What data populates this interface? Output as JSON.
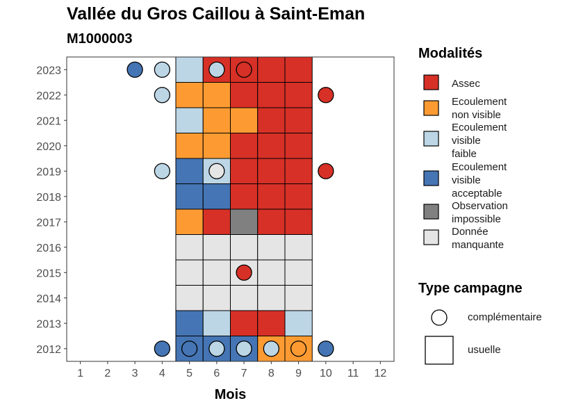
{
  "chart_data": {
    "type": "heatmap",
    "title": "Vallée du Gros Caillou à Saint-Eman",
    "subtitle": "M1000003",
    "xlabel": "Mois",
    "ylabel": "",
    "x_ticks": [
      1,
      2,
      3,
      4,
      5,
      6,
      7,
      8,
      9,
      10,
      11,
      12
    ],
    "y_ticks": [
      2012,
      2013,
      2014,
      2015,
      2016,
      2017,
      2018,
      2019,
      2020,
      2021,
      2022,
      2023
    ],
    "xlim": [
      0.5,
      12.5
    ],
    "ylim": [
      2011.5,
      2023.5
    ],
    "grid": false,
    "legend_position": "right",
    "legend_modalites": {
      "title": "Modalités",
      "items": [
        {
          "key": "assec",
          "label": "Assec",
          "color": "#d73027"
        },
        {
          "key": "ecoulement_non_visible",
          "label": "Ecoulement\nnon visible",
          "color": "#fd9b32"
        },
        {
          "key": "ecoulement_visible_faible",
          "label": "Ecoulement\nvisible\nfaible",
          "color": "#bcd6e6"
        },
        {
          "key": "ecoulement_visible_acceptable",
          "label": "Ecoulement\nvisible\nacceptable",
          "color": "#4575b4"
        },
        {
          "key": "observation_impossible",
          "label": "Observation\nimpossible",
          "color": "#808080"
        },
        {
          "key": "donnee_manquante",
          "label": "Donnée\nmanquante",
          "color": "#e5e5e5"
        }
      ]
    },
    "legend_type": {
      "title": "Type campagne",
      "items": [
        {
          "key": "complementaire",
          "label": "complémentaire",
          "shape": "circle"
        },
        {
          "key": "usuelle",
          "label": "usuelle",
          "shape": "square"
        }
      ]
    },
    "usuelle": [
      {
        "year": 2023,
        "month": 5,
        "modalite": "ecoulement_visible_faible"
      },
      {
        "year": 2023,
        "month": 6,
        "modalite": "assec"
      },
      {
        "year": 2023,
        "month": 7,
        "modalite": "assec"
      },
      {
        "year": 2023,
        "month": 8,
        "modalite": "assec"
      },
      {
        "year": 2023,
        "month": 9,
        "modalite": "assec"
      },
      {
        "year": 2022,
        "month": 5,
        "modalite": "ecoulement_non_visible"
      },
      {
        "year": 2022,
        "month": 6,
        "modalite": "ecoulement_non_visible"
      },
      {
        "year": 2022,
        "month": 7,
        "modalite": "assec"
      },
      {
        "year": 2022,
        "month": 8,
        "modalite": "assec"
      },
      {
        "year": 2022,
        "month": 9,
        "modalite": "assec"
      },
      {
        "year": 2021,
        "month": 5,
        "modalite": "ecoulement_visible_faible"
      },
      {
        "year": 2021,
        "month": 6,
        "modalite": "ecoulement_non_visible"
      },
      {
        "year": 2021,
        "month": 7,
        "modalite": "ecoulement_non_visible"
      },
      {
        "year": 2021,
        "month": 8,
        "modalite": "assec"
      },
      {
        "year": 2021,
        "month": 9,
        "modalite": "assec"
      },
      {
        "year": 2020,
        "month": 5,
        "modalite": "ecoulement_non_visible"
      },
      {
        "year": 2020,
        "month": 6,
        "modalite": "ecoulement_non_visible"
      },
      {
        "year": 2020,
        "month": 7,
        "modalite": "assec"
      },
      {
        "year": 2020,
        "month": 8,
        "modalite": "assec"
      },
      {
        "year": 2020,
        "month": 9,
        "modalite": "assec"
      },
      {
        "year": 2019,
        "month": 5,
        "modalite": "ecoulement_visible_acceptable"
      },
      {
        "year": 2019,
        "month": 6,
        "modalite": "ecoulement_visible_faible"
      },
      {
        "year": 2019,
        "month": 7,
        "modalite": "assec"
      },
      {
        "year": 2019,
        "month": 8,
        "modalite": "assec"
      },
      {
        "year": 2019,
        "month": 9,
        "modalite": "assec"
      },
      {
        "year": 2018,
        "month": 5,
        "modalite": "ecoulement_visible_acceptable"
      },
      {
        "year": 2018,
        "month": 6,
        "modalite": "ecoulement_visible_acceptable"
      },
      {
        "year": 2018,
        "month": 7,
        "modalite": "assec"
      },
      {
        "year": 2018,
        "month": 8,
        "modalite": "assec"
      },
      {
        "year": 2018,
        "month": 9,
        "modalite": "assec"
      },
      {
        "year": 2017,
        "month": 5,
        "modalite": "ecoulement_non_visible"
      },
      {
        "year": 2017,
        "month": 6,
        "modalite": "assec"
      },
      {
        "year": 2017,
        "month": 7,
        "modalite": "observation_impossible"
      },
      {
        "year": 2017,
        "month": 8,
        "modalite": "assec"
      },
      {
        "year": 2017,
        "month": 9,
        "modalite": "assec"
      },
      {
        "year": 2016,
        "month": 5,
        "modalite": "donnee_manquante"
      },
      {
        "year": 2016,
        "month": 6,
        "modalite": "donnee_manquante"
      },
      {
        "year": 2016,
        "month": 7,
        "modalite": "donnee_manquante"
      },
      {
        "year": 2016,
        "month": 8,
        "modalite": "donnee_manquante"
      },
      {
        "year": 2016,
        "month": 9,
        "modalite": "donnee_manquante"
      },
      {
        "year": 2015,
        "month": 5,
        "modalite": "donnee_manquante"
      },
      {
        "year": 2015,
        "month": 6,
        "modalite": "donnee_manquante"
      },
      {
        "year": 2015,
        "month": 7,
        "modalite": "donnee_manquante"
      },
      {
        "year": 2015,
        "month": 8,
        "modalite": "donnee_manquante"
      },
      {
        "year": 2015,
        "month": 9,
        "modalite": "donnee_manquante"
      },
      {
        "year": 2014,
        "month": 5,
        "modalite": "donnee_manquante"
      },
      {
        "year": 2014,
        "month": 6,
        "modalite": "donnee_manquante"
      },
      {
        "year": 2014,
        "month": 7,
        "modalite": "donnee_manquante"
      },
      {
        "year": 2014,
        "month": 8,
        "modalite": "donnee_manquante"
      },
      {
        "year": 2014,
        "month": 9,
        "modalite": "donnee_manquante"
      },
      {
        "year": 2013,
        "month": 5,
        "modalite": "ecoulement_visible_acceptable"
      },
      {
        "year": 2013,
        "month": 6,
        "modalite": "ecoulement_visible_faible"
      },
      {
        "year": 2013,
        "month": 7,
        "modalite": "assec"
      },
      {
        "year": 2013,
        "month": 8,
        "modalite": "assec"
      },
      {
        "year": 2013,
        "month": 9,
        "modalite": "ecoulement_visible_faible"
      },
      {
        "year": 2012,
        "month": 5,
        "modalite": "ecoulement_visible_acceptable"
      },
      {
        "year": 2012,
        "month": 6,
        "modalite": "ecoulement_visible_acceptable"
      },
      {
        "year": 2012,
        "month": 7,
        "modalite": "ecoulement_visible_acceptable"
      },
      {
        "year": 2012,
        "month": 8,
        "modalite": "ecoulement_non_visible"
      },
      {
        "year": 2012,
        "month": 9,
        "modalite": "ecoulement_non_visible"
      }
    ],
    "complementaire": [
      {
        "year": 2023,
        "month": 3,
        "modalite": "ecoulement_visible_acceptable"
      },
      {
        "year": 2023,
        "month": 4,
        "modalite": "ecoulement_visible_faible"
      },
      {
        "year": 2023,
        "month": 6,
        "modalite": "ecoulement_visible_faible"
      },
      {
        "year": 2023,
        "month": 7,
        "modalite": "assec"
      },
      {
        "year": 2022,
        "month": 4,
        "modalite": "ecoulement_visible_faible"
      },
      {
        "year": 2022,
        "month": 10,
        "modalite": "assec"
      },
      {
        "year": 2019,
        "month": 4,
        "modalite": "ecoulement_visible_faible"
      },
      {
        "year": 2019,
        "month": 6,
        "modalite": "donnee_manquante"
      },
      {
        "year": 2019,
        "month": 10,
        "modalite": "assec"
      },
      {
        "year": 2015,
        "month": 7,
        "modalite": "assec"
      },
      {
        "year": 2012,
        "month": 4,
        "modalite": "ecoulement_visible_acceptable"
      },
      {
        "year": 2012,
        "month": 5,
        "modalite": "ecoulement_visible_acceptable"
      },
      {
        "year": 2012,
        "month": 6,
        "modalite": "ecoulement_visible_faible"
      },
      {
        "year": 2012,
        "month": 7,
        "modalite": "ecoulement_visible_faible"
      },
      {
        "year": 2012,
        "month": 8,
        "modalite": "ecoulement_visible_faible"
      },
      {
        "year": 2012,
        "month": 9,
        "modalite": "ecoulement_non_visible"
      },
      {
        "year": 2012,
        "month": 10,
        "modalite": "ecoulement_visible_acceptable"
      }
    ]
  }
}
